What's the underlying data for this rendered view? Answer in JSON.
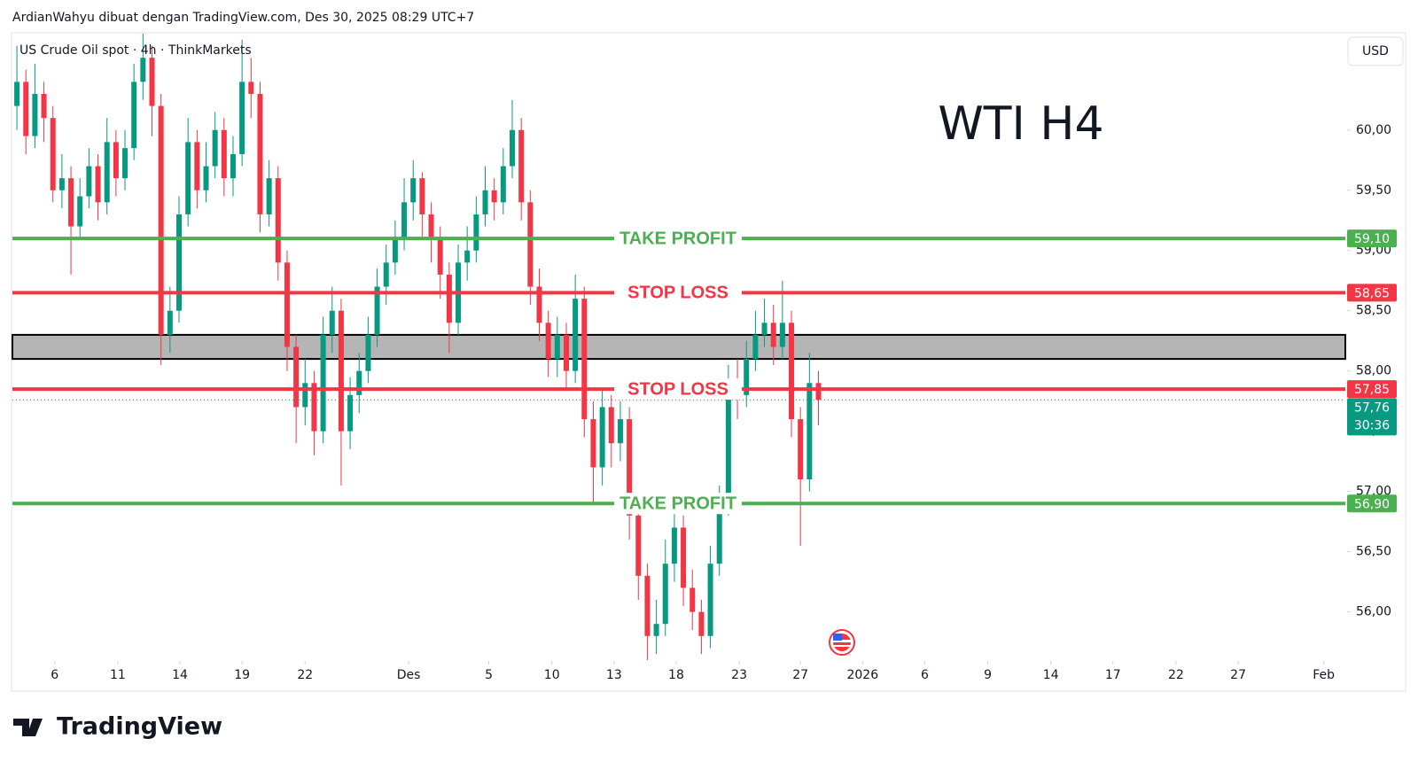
{
  "header": "ArdianWahyu dibuat dengan TradingView.com, Des 30, 2025 08:29 UTC+7",
  "brand": "TradingView",
  "chart_data": {
    "type": "candlestick",
    "symbol": "US Crude Oil spot · 4h · ThinkMarkets",
    "title": "WTI H4",
    "currency": "USD",
    "up_color": "#089981",
    "down_color": "#f23645",
    "x": [
      0,
      1,
      2,
      3,
      4,
      5,
      6,
      7,
      8,
      9,
      10,
      11,
      12,
      13,
      14,
      15,
      16,
      17,
      18,
      19,
      20,
      21,
      22,
      23,
      24,
      25,
      26,
      27,
      28,
      29,
      30,
      31,
      32,
      33,
      34,
      35,
      36,
      37,
      38,
      39,
      40,
      41,
      42,
      43,
      44,
      45,
      46,
      47,
      48,
      49,
      50,
      51,
      52,
      53,
      54,
      55,
      56,
      57,
      58,
      59,
      60,
      61,
      62,
      63,
      64,
      65,
      66,
      67,
      68,
      69,
      70,
      71,
      72,
      73,
      74,
      75,
      76,
      77,
      78,
      79,
      80,
      81,
      82,
      83,
      84,
      85,
      86,
      87,
      88,
      89
    ],
    "open": [
      60.2,
      60.4,
      59.95,
      60.3,
      60.1,
      59.5,
      59.6,
      59.2,
      59.45,
      59.7,
      59.4,
      59.9,
      59.6,
      59.85,
      60.4,
      60.6,
      60.2,
      58.3,
      58.5,
      59.3,
      59.9,
      59.5,
      59.7,
      60.0,
      59.6,
      59.8,
      60.4,
      60.3,
      59.3,
      59.6,
      58.9,
      58.2,
      57.7,
      57.9,
      57.5,
      58.3,
      58.5,
      57.5,
      57.8,
      58.0,
      58.3,
      58.7,
      58.9,
      59.1,
      59.4,
      59.6,
      59.3,
      59.1,
      58.8,
      58.4,
      58.9,
      59.0,
      59.3,
      59.5,
      59.4,
      59.7,
      60.0,
      59.4,
      58.7,
      58.4,
      58.1,
      58.3,
      58.0,
      58.6,
      57.6,
      57.2,
      57.7,
      57.4,
      57.6,
      56.8,
      56.3,
      55.8,
      55.9,
      56.4,
      56.7,
      56.2,
      56.0,
      55.8,
      56.4,
      56.9,
      57.9,
      57.8,
      58.1,
      58.3,
      58.4,
      58.2,
      58.4,
      57.6,
      57.1,
      57.9
    ],
    "high": [
      60.7,
      60.5,
      60.55,
      60.4,
      60.2,
      59.8,
      59.7,
      59.6,
      59.85,
      59.8,
      60.1,
      60.0,
      60.0,
      60.55,
      60.8,
      60.7,
      60.3,
      58.7,
      59.45,
      60.1,
      60.0,
      59.9,
      60.15,
      60.1,
      59.95,
      60.75,
      60.6,
      60.4,
      59.75,
      59.7,
      59.0,
      58.3,
      58.1,
      58.0,
      58.45,
      58.7,
      58.6,
      57.95,
      58.15,
      58.45,
      58.85,
      59.05,
      59.25,
      59.6,
      59.75,
      59.65,
      59.4,
      59.2,
      58.9,
      59.05,
      59.2,
      59.45,
      59.7,
      59.6,
      59.85,
      60.25,
      60.1,
      59.5,
      58.85,
      58.5,
      58.45,
      58.4,
      58.8,
      58.7,
      57.75,
      57.85,
      57.8,
      57.75,
      57.7,
      56.9,
      56.4,
      56.1,
      56.6,
      56.85,
      56.8,
      56.35,
      56.1,
      56.55,
      57.05,
      58.05,
      58.1,
      58.25,
      58.5,
      58.6,
      58.55,
      58.75,
      58.5,
      57.7,
      58.15,
      58.0
    ],
    "low": [
      60.0,
      59.8,
      59.85,
      59.9,
      59.4,
      59.35,
      58.8,
      59.1,
      59.35,
      59.25,
      59.3,
      59.45,
      59.5,
      59.75,
      60.25,
      59.95,
      58.05,
      58.15,
      58.4,
      59.2,
      59.35,
      59.4,
      59.6,
      59.45,
      59.45,
      59.7,
      60.1,
      59.15,
      59.2,
      58.75,
      58.0,
      57.4,
      57.55,
      57.3,
      57.4,
      58.15,
      57.05,
      57.35,
      57.65,
      57.9,
      58.2,
      58.55,
      58.8,
      59.0,
      59.25,
      59.1,
      58.9,
      58.6,
      58.15,
      58.3,
      58.75,
      58.9,
      59.2,
      59.25,
      59.3,
      59.6,
      59.25,
      58.55,
      58.25,
      57.95,
      57.95,
      57.85,
      57.9,
      57.45,
      56.9,
      57.05,
      57.2,
      57.25,
      56.6,
      56.1,
      55.6,
      55.65,
      55.8,
      56.25,
      56.05,
      55.85,
      55.65,
      55.7,
      56.3,
      56.8,
      57.6,
      57.7,
      58.0,
      58.2,
      58.05,
      58.1,
      57.45,
      56.55,
      57.0,
      57.55
    ],
    "close": [
      60.4,
      59.95,
      60.3,
      60.1,
      59.5,
      59.6,
      59.2,
      59.45,
      59.7,
      59.4,
      59.9,
      59.6,
      59.85,
      60.4,
      60.6,
      60.2,
      58.3,
      58.5,
      59.3,
      59.9,
      59.5,
      59.7,
      60.0,
      59.6,
      59.8,
      60.4,
      60.3,
      59.3,
      59.6,
      58.9,
      58.2,
      57.7,
      57.9,
      57.5,
      58.3,
      58.5,
      57.5,
      57.8,
      58.0,
      58.3,
      58.7,
      58.9,
      59.1,
      59.4,
      59.6,
      59.3,
      59.1,
      58.8,
      58.4,
      58.9,
      59.0,
      59.3,
      59.5,
      59.4,
      59.7,
      60.0,
      59.4,
      58.7,
      58.4,
      58.1,
      58.3,
      58.0,
      58.6,
      57.6,
      57.2,
      57.7,
      57.4,
      57.6,
      56.8,
      56.3,
      55.8,
      55.9,
      56.4,
      56.7,
      56.2,
      56.0,
      55.8,
      56.4,
      56.9,
      57.9,
      57.8,
      58.1,
      58.3,
      58.4,
      58.2,
      58.4,
      57.6,
      57.1,
      57.9,
      57.76
    ],
    "xlim": [
      -0.5,
      147.5
    ],
    "xticks": [
      {
        "value": 4.2,
        "label": "6"
      },
      {
        "value": 11.2,
        "label": "11"
      },
      {
        "value": 18.1,
        "label": "14"
      },
      {
        "value": 25,
        "label": "19"
      },
      {
        "value": 32,
        "label": "22"
      },
      {
        "value": 43.5,
        "label": "Des"
      },
      {
        "value": 52.4,
        "label": "5"
      },
      {
        "value": 59.4,
        "label": "10"
      },
      {
        "value": 66.3,
        "label": "13"
      },
      {
        "value": 73.2,
        "label": "18"
      },
      {
        "value": 80.2,
        "label": "23"
      },
      {
        "value": 87,
        "label": "27"
      },
      {
        "value": 93.9,
        "label": "2026"
      },
      {
        "value": 100.8,
        "label": "6"
      },
      {
        "value": 107.8,
        "label": "9"
      },
      {
        "value": 114.8,
        "label": "14"
      },
      {
        "value": 121.7,
        "label": "17"
      },
      {
        "value": 128.7,
        "label": "22"
      },
      {
        "value": 135.6,
        "label": "27"
      },
      {
        "value": 145.1,
        "label": "Feb"
      }
    ],
    "ylim": [
      55.6,
      60.8
    ],
    "yticks": [
      {
        "value": 56,
        "label": "56,00"
      },
      {
        "value": 56.5,
        "label": "56,50"
      },
      {
        "value": 57,
        "label": "57,00"
      },
      {
        "value": 57.5,
        "label": "57,50"
      },
      {
        "value": 58,
        "label": "58,00"
      },
      {
        "value": 58.5,
        "label": "58,50"
      },
      {
        "value": 59,
        "label": "59,00"
      },
      {
        "value": 59.5,
        "label": "59,50"
      },
      {
        "value": 60,
        "label": "60,00"
      }
    ],
    "zone": {
      "low": 58.1,
      "high": 58.3,
      "color": "#b5b5b5"
    },
    "levels": [
      {
        "label": "TAKE PROFIT",
        "value": 59.1,
        "value_label": "59,10",
        "color": "#4caf50"
      },
      {
        "label": "STOP LOSS",
        "value": 58.65,
        "value_label": "58,65",
        "color": "#f23645"
      },
      {
        "label": "STOP LOSS",
        "value": 57.85,
        "value_label": "57,85",
        "color": "#f23645"
      },
      {
        "label": "TAKE PROFIT",
        "value": 56.9,
        "value_label": "56,90",
        "color": "#4caf50"
      }
    ],
    "last": {
      "value": 57.76,
      "label": "57,76",
      "countdown": "30:36",
      "color": "#089981"
    }
  }
}
